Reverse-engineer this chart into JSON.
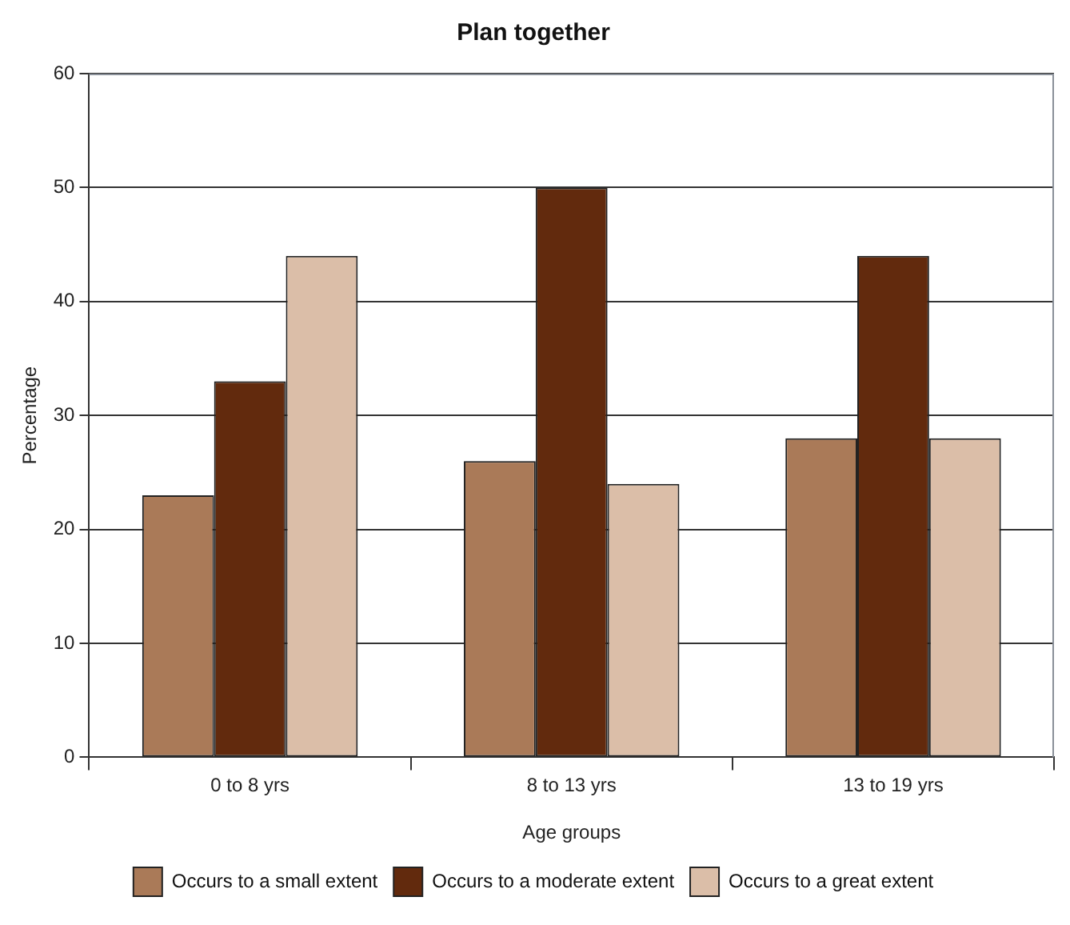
{
  "chart_data": {
    "type": "bar",
    "title": "Plan together",
    "xlabel": "Age groups",
    "ylabel": "Percentage",
    "categories": [
      "0 to 8 yrs",
      "8 to 13 yrs",
      "13 to 19 yrs"
    ],
    "series": [
      {
        "name": "Occurs to a small extent",
        "color": "#aa7a58",
        "values": [
          23,
          26,
          28
        ]
      },
      {
        "name": "Occurs to a moderate extent",
        "color": "#622a0d",
        "values": [
          33,
          50,
          44
        ]
      },
      {
        "name": "Occurs to a great extent",
        "color": "#dbbea8",
        "values": [
          44,
          24,
          28
        ]
      }
    ],
    "ylim": [
      0,
      60
    ],
    "yticks": [
      0,
      10,
      20,
      30,
      40,
      50,
      60
    ],
    "grid": "y",
    "legend": "bottom"
  }
}
